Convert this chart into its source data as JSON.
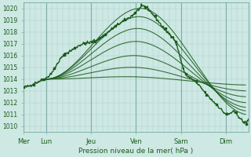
{
  "title": "",
  "xlabel": "Pression niveau de la mer( hPa )",
  "ylim": [
    1009.5,
    1020.5
  ],
  "yticks": [
    1010,
    1011,
    1012,
    1013,
    1014,
    1015,
    1016,
    1017,
    1018,
    1019,
    1020
  ],
  "day_labels": [
    "Mer",
    "Lun",
    "Jeu",
    "Ven",
    "Sam",
    "Dim"
  ],
  "day_positions": [
    0,
    24,
    72,
    120,
    168,
    216
  ],
  "total_hours": 240,
  "bg_color": "#cee8e4",
  "grid_color": "#a8ceca",
  "line_color_dark": "#1a5c1a",
  "sep_color": "#80b0aa"
}
